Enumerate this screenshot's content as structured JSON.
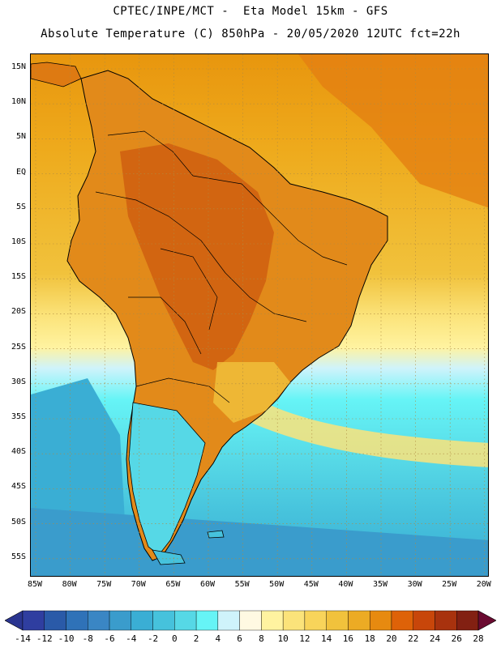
{
  "header": {
    "title_line1": "CPTEC/INPE/MCT -  Eta Model 15km - GFS",
    "title_line2": "Absolute Temperature (C) 850hPa - 20/05/2020 12UTC fct=22h"
  },
  "map": {
    "lat_labels": [
      "15N",
      "10N",
      "5N",
      "EQ",
      "5S",
      "10S",
      "15S",
      "20S",
      "25S",
      "30S",
      "35S",
      "40S",
      "45S",
      "50S",
      "55S"
    ],
    "lon_labels": [
      "85W",
      "80W",
      "75W",
      "70W",
      "65W",
      "60W",
      "55W",
      "50W",
      "45W",
      "40W",
      "35W",
      "30W",
      "25W",
      "20W"
    ],
    "gridline_color": "#b08a40",
    "coastline_color": "#000000"
  },
  "colorbar": {
    "labels": [
      "-14",
      "-12",
      "-10",
      "-8",
      "-6",
      "-4",
      "-2",
      "0",
      "2",
      "4",
      "6",
      "8",
      "10",
      "12",
      "14",
      "16",
      "18",
      "20",
      "22",
      "24",
      "26",
      "28"
    ],
    "colors": [
      "#2f3ea0",
      "#2a5aa8",
      "#2f72b8",
      "#3a86c4",
      "#3a9ccc",
      "#3aaed4",
      "#46c2dc",
      "#56d8e6",
      "#66f4f6",
      "#cff3fb",
      "#fff9e2",
      "#fff3a0",
      "#fbe37a",
      "#f8d45a",
      "#f1c23c",
      "#ecab24",
      "#e78a10",
      "#de6208",
      "#c8460a",
      "#a8320e",
      "#822012"
    ],
    "under_color": "#2a3590",
    "over_color": "#6a0a30"
  }
}
